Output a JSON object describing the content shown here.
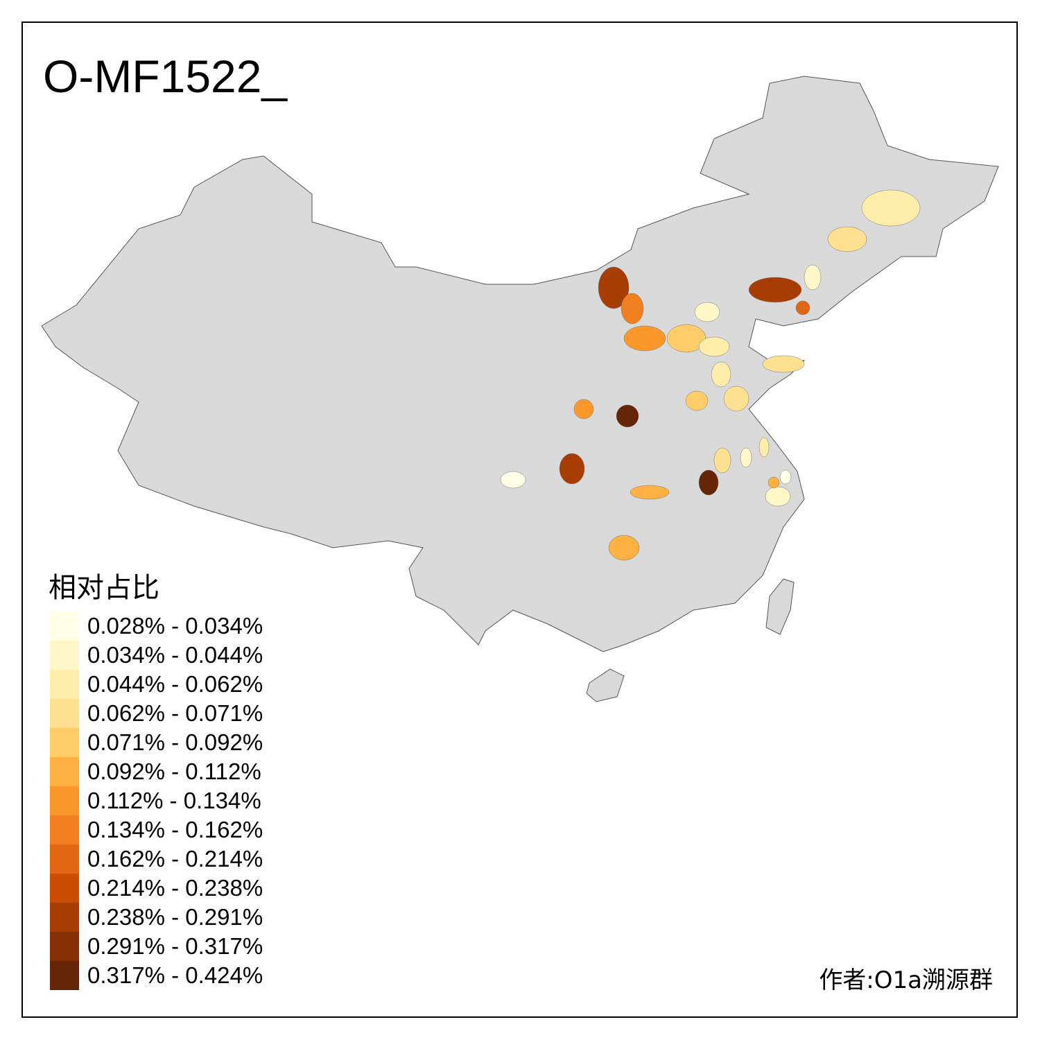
{
  "title": "O-MF1522_",
  "legend": {
    "title": "相对占比",
    "classes": [
      {
        "label": "0.028% - 0.034%",
        "color": "#FFFFE5"
      },
      {
        "label": "0.034% - 0.044%",
        "color": "#FFF7C8"
      },
      {
        "label": "0.044% - 0.062%",
        "color": "#FEEDAA"
      },
      {
        "label": "0.062% - 0.071%",
        "color": "#FEE190"
      },
      {
        "label": "0.071% - 0.092%",
        "color": "#FECC69"
      },
      {
        "label": "0.092% - 0.112%",
        "color": "#FDB143"
      },
      {
        "label": "0.112% - 0.134%",
        "color": "#FB9829"
      },
      {
        "label": "0.134% - 0.162%",
        "color": "#F07F20"
      },
      {
        "label": "0.162% - 0.214%",
        "color": "#E06614"
      },
      {
        "label": "0.214% - 0.238%",
        "color": "#CC4C02"
      },
      {
        "label": "0.238% - 0.291%",
        "color": "#A83D04"
      },
      {
        "label": "0.291% - 0.317%",
        "color": "#883005"
      },
      {
        "label": "0.317% - 0.424%",
        "color": "#662506"
      }
    ]
  },
  "map": {
    "base_color": "#D9D9D9",
    "region_classes": [
      10,
      7,
      6,
      1,
      4,
      2,
      10,
      8,
      1,
      2,
      3,
      3,
      2,
      3,
      4,
      6,
      12,
      10,
      0,
      5,
      5,
      12,
      3,
      1,
      2,
      1,
      0,
      5
    ]
  },
  "author": "作者:O1a溯源群"
}
